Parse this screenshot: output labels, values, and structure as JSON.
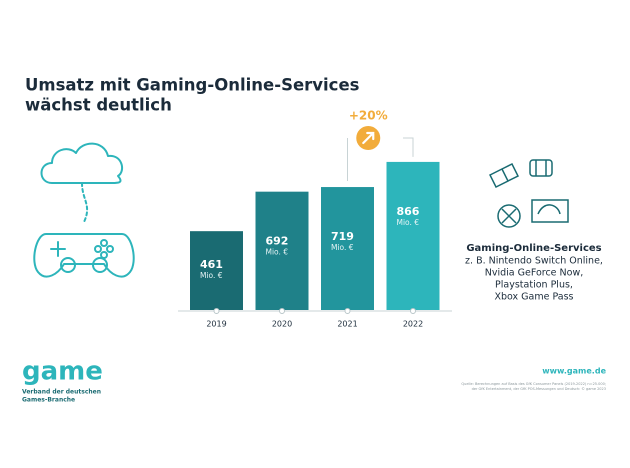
{
  "chart_data": {
    "type": "bar",
    "title": [
      "Umsatz mit Gaming-Online-Services",
      "wächst deutlich"
    ],
    "categories": [
      "2019",
      "2020",
      "2021",
      "2022"
    ],
    "values": [
      461,
      692,
      719,
      866
    ],
    "unit": "Mio. €",
    "colors": [
      "#1a6b72",
      "#1f8189",
      "#22959d",
      "#2db5bb"
    ],
    "annotation": "+20%",
    "annotation_color": "#f2ac3b",
    "side_title": "Gaming-Online-Services",
    "side_lines": [
      "z. B. Nintendo Switch Online,",
      "Nvidia GeForce Now,",
      "Playstation Plus,",
      "Xbox Game Pass"
    ]
  },
  "footer": {
    "logo": "game",
    "logo_sub": [
      "Verband der deutschen",
      "Games-Branche"
    ],
    "url": "www.game.de",
    "source": [
      "Quelle: Berechnungen auf Basis des GfK Consumer Panels (2019-2022) n=25.000;",
      "der GfK Entertainment, der GfK POS-Messungen und Deutsch: © game 2023"
    ]
  }
}
